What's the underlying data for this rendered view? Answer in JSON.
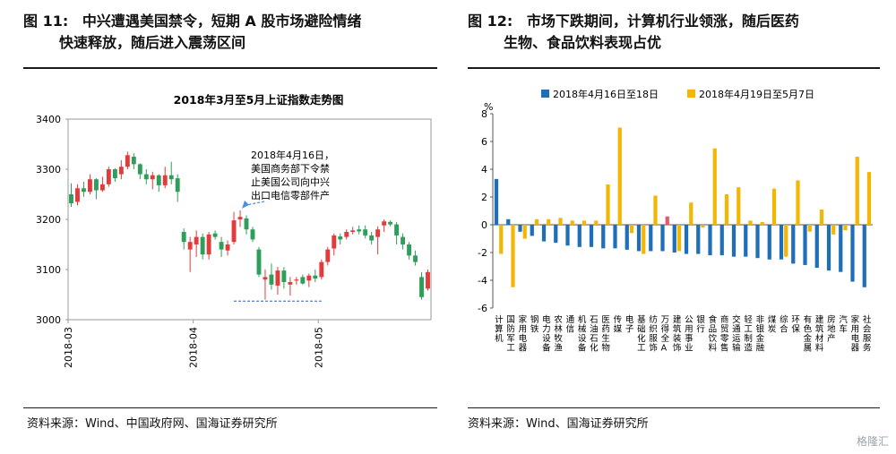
{
  "left": {
    "fig_label": "图 11:",
    "title_line1": "中兴遭遇美国禁令，短期 A 股市场避险情绪",
    "title_line2": "快速释放，随后进入震荡区间",
    "source": "资料来源：Wind、中国政府网、国海证券研究所"
  },
  "right": {
    "fig_label": "图 12:",
    "title_line1": "市场下跌期间，计算机行业领涨，随后医药",
    "title_line2": "生物、食品饮料表现占优",
    "source": "资料来源：Wind、国海证券研究所"
  },
  "watermark": "格隆汇",
  "chart_data": [
    {
      "type": "candlestick",
      "title": "2018年3月至5月上证指数走势图",
      "ylim": [
        3000,
        3400
      ],
      "yticks": [
        "3000",
        "3100",
        "3200",
        "3300",
        "3400"
      ],
      "xticks": [
        {
          "label": "2018-03",
          "i": 0
        },
        {
          "label": "2018-04",
          "i": 20
        },
        {
          "label": "2018-05",
          "i": 40
        }
      ],
      "annotation": [
        "2018年4月16日，",
        "美国商务部下令禁",
        "止美国公司向中兴",
        "出口电信零部件产"
      ],
      "annotation_index": 27,
      "support_level": 3037,
      "support_range": [
        26,
        40
      ],
      "up_color": "#e23b3b",
      "down_color": "#2e9e5a",
      "candles": [
        [
          3250,
          3272,
          3225,
          3232
        ],
        [
          3235,
          3270,
          3228,
          3262
        ],
        [
          3262,
          3275,
          3245,
          3255
        ],
        [
          3255,
          3290,
          3250,
          3280
        ],
        [
          3280,
          3282,
          3240,
          3258
        ],
        [
          3258,
          3285,
          3255,
          3270
        ],
        [
          3270,
          3305,
          3265,
          3300
        ],
        [
          3300,
          3302,
          3275,
          3282
        ],
        [
          3290,
          3318,
          3280,
          3305
        ],
        [
          3305,
          3335,
          3300,
          3328
        ],
        [
          3325,
          3332,
          3300,
          3310
        ],
        [
          3310,
          3312,
          3280,
          3290
        ],
        [
          3290,
          3300,
          3270,
          3280
        ],
        [
          3280,
          3295,
          3260,
          3288
        ],
        [
          3288,
          3290,
          3255,
          3268
        ],
        [
          3268,
          3305,
          3262,
          3288
        ],
        [
          3288,
          3315,
          3270,
          3280
        ],
        [
          3282,
          3290,
          3235,
          3255
        ],
        [
          3175,
          3182,
          3140,
          3155
        ],
        [
          3140,
          3165,
          3095,
          3155
        ],
        [
          3150,
          3178,
          3125,
          3165
        ],
        [
          3165,
          3172,
          3120,
          3130
        ],
        [
          3130,
          3175,
          3120,
          3170
        ],
        [
          3172,
          3178,
          3160,
          3165
        ],
        [
          3155,
          3165,
          3125,
          3140
        ],
        [
          3138,
          3158,
          3128,
          3150
        ],
        [
          3155,
          3215,
          3150,
          3198
        ],
        [
          3200,
          3218,
          3185,
          3205
        ],
        [
          3202,
          3208,
          3170,
          3180
        ],
        [
          3180,
          3185,
          3155,
          3160
        ],
        [
          3140,
          3145,
          3085,
          3090
        ],
        [
          3080,
          3100,
          3040,
          3085
        ],
        [
          3090,
          3112,
          3060,
          3070
        ],
        [
          3068,
          3105,
          3050,
          3098
        ],
        [
          3098,
          3105,
          3062,
          3075
        ],
        [
          3070,
          3085,
          3048,
          3075
        ],
        [
          3078,
          3085,
          3070,
          3080
        ],
        [
          3085,
          3090,
          3070,
          3072
        ],
        [
          3078,
          3092,
          3065,
          3088
        ],
        [
          3088,
          3100,
          3075,
          3082
        ],
        [
          3085,
          3120,
          3080,
          3115
        ],
        [
          3115,
          3145,
          3108,
          3140
        ],
        [
          3142,
          3172,
          3128,
          3168
        ],
        [
          3166,
          3172,
          3150,
          3160
        ],
        [
          3165,
          3180,
          3160,
          3175
        ],
        [
          3175,
          3185,
          3170,
          3178
        ],
        [
          3180,
          3188,
          3170,
          3176
        ],
        [
          3180,
          3188,
          3162,
          3168
        ],
        [
          3168,
          3175,
          3150,
          3158
        ],
        [
          3165,
          3186,
          3130,
          3180
        ],
        [
          3188,
          3200,
          3175,
          3196
        ],
        [
          3195,
          3198,
          3186,
          3190
        ],
        [
          3190,
          3195,
          3150,
          3168
        ],
        [
          3165,
          3172,
          3140,
          3150
        ],
        [
          3150,
          3155,
          3120,
          3128
        ],
        [
          3128,
          3138,
          3108,
          3115
        ],
        [
          3085,
          3095,
          3040,
          3045
        ],
        [
          3062,
          3100,
          3058,
          3095
        ]
      ]
    },
    {
      "type": "bar",
      "ylabel": "%",
      "ylim": [
        -6,
        8
      ],
      "yticks": [
        "-6",
        "-4",
        "-2",
        "0",
        "2",
        "4",
        "6",
        "8"
      ],
      "categories": [
        "计算机",
        "国防军工",
        "家用电器",
        "钢铁",
        "电力设备",
        "农林牧渔",
        "通信",
        "机械设备",
        "石油石化",
        "医药生物",
        "传媒",
        "电子",
        "基础化工",
        "纺织服饰",
        "万得全A",
        "建筑装饰",
        "公用事业",
        "银行",
        "食品饮料",
        "商贸零售",
        "交通运输",
        "轻工制造",
        "非银金融",
        "煤炭",
        "综合",
        "环保",
        "有色金属",
        "建筑材料",
        "房地产",
        "汽车",
        "家用电器",
        "社会服务"
      ],
      "series": [
        {
          "name": "2018年4月16日至18日",
          "color": "#1f6fb8",
          "values": [
            3.3,
            0.4,
            -0.5,
            -0.8,
            -1.2,
            -1.3,
            -1.5,
            -1.6,
            -1.6,
            -1.7,
            -1.7,
            -1.8,
            -1.9,
            -1.9,
            -1.9,
            -2.0,
            -2.1,
            -2.1,
            -2.2,
            -2.2,
            -2.3,
            -2.3,
            -2.4,
            -2.5,
            -2.5,
            -2.8,
            -2.9,
            -3.1,
            -3.3,
            -3.4,
            -4.1,
            -4.5
          ]
        },
        {
          "name": "2018年4月19日至5月7日",
          "color": "#f2b705",
          "values": [
            -2.1,
            -4.5,
            -1.0,
            0.4,
            0.4,
            0.5,
            0.3,
            0.3,
            0.3,
            2.9,
            7.0,
            -0.6,
            -2.1,
            2.1,
            0.6,
            -1.9,
            1.6,
            -0.2,
            5.5,
            2.2,
            2.7,
            0.3,
            0.2,
            2.6,
            -2.3,
            3.2,
            -0.5,
            1.1,
            -0.7,
            -0.4,
            4.9,
            3.8
          ]
        }
      ],
      "highlight": {
        "category": "万得全A",
        "color": "#e05c6a"
      }
    }
  ]
}
